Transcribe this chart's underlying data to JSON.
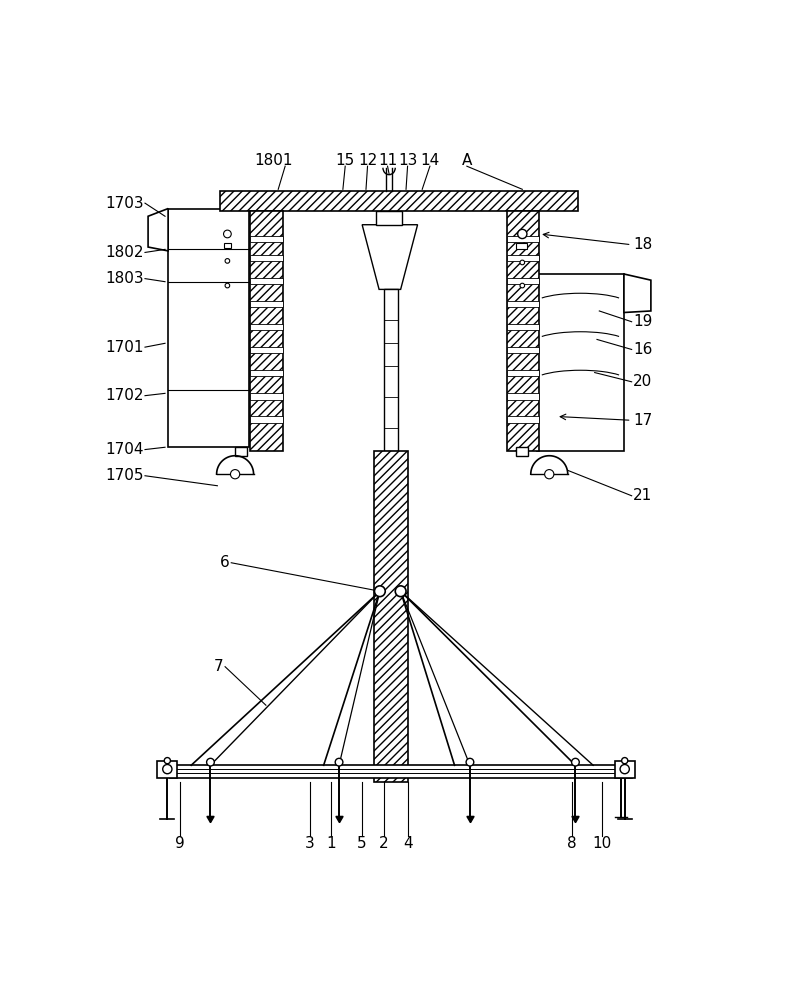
{
  "bg_color": "#ffffff",
  "lc": "#000000",
  "fig_width": 7.87,
  "fig_height": 10.0
}
